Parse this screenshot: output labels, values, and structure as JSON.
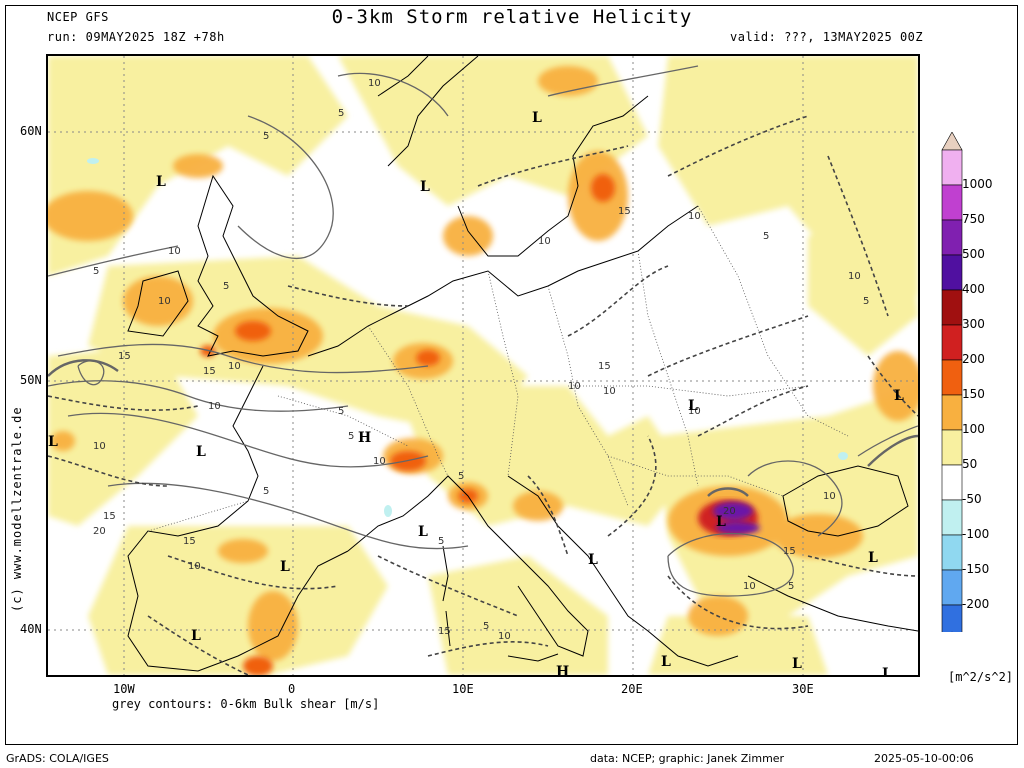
{
  "header": {
    "model": "NCEP GFS",
    "run": "run: 09MAY2025 18Z +78h",
    "title": "0-3km Storm relative Helicity",
    "valid": "valid: ???, 13MAY2025 00Z"
  },
  "side_credit": "(c) www.modellzentrale.de",
  "axes": {
    "lat_ticks": [
      "60N",
      "50N",
      "40N"
    ],
    "lon_ticks": [
      "10W",
      "0",
      "10E",
      "20E",
      "30E"
    ]
  },
  "contour_note": "grey contours: 0-6km Bulk shear [m/s]",
  "colorbar": {
    "units": "[m^2/s^2]",
    "labels": [
      "1000",
      "750",
      "500",
      "400",
      "300",
      "200",
      "150",
      "100",
      "50",
      "-50",
      "-100",
      "-150",
      "-200"
    ],
    "colors": {
      "c1000": "#f0b0f0",
      "c750": "#c040d0",
      "c500": "#8020b0",
      "c400": "#5010a0",
      "c300": "#a01010",
      "c200": "#d02020",
      "c150": "#f06010",
      "c100": "#f8b040",
      "c50": "#f8f0a0",
      "c0": "#ffffff",
      "cm50": "#c0f0f0",
      "cm100": "#90d8f0",
      "cm150": "#60a8f0",
      "cm200": "#3070e0"
    }
  },
  "map_labels": {
    "lows": [
      "L",
      "L",
      "L",
      "L",
      "L",
      "L",
      "L",
      "L",
      "L",
      "L",
      "L",
      "L",
      "L",
      "L",
      "L",
      "L"
    ],
    "highs": [
      "H",
      "H"
    ],
    "contour_values": [
      "10",
      "5",
      "5",
      "10",
      "5",
      "5",
      "10",
      "15",
      "10",
      "15",
      "5",
      "10",
      "5",
      "15",
      "20",
      "15",
      "10",
      "5",
      "10",
      "5",
      "10",
      "15",
      "10",
      "20",
      "15",
      "10",
      "5",
      "10",
      "5",
      "10",
      "5",
      "15",
      "10",
      "10",
      "5",
      "15",
      "5",
      "10",
      "10",
      "10"
    ]
  },
  "footer": {
    "left": "GrADS: COLA/IGES",
    "mid": "data: NCEP; graphic: Janek Zimmer",
    "right": "2025-05-10-00:06"
  }
}
